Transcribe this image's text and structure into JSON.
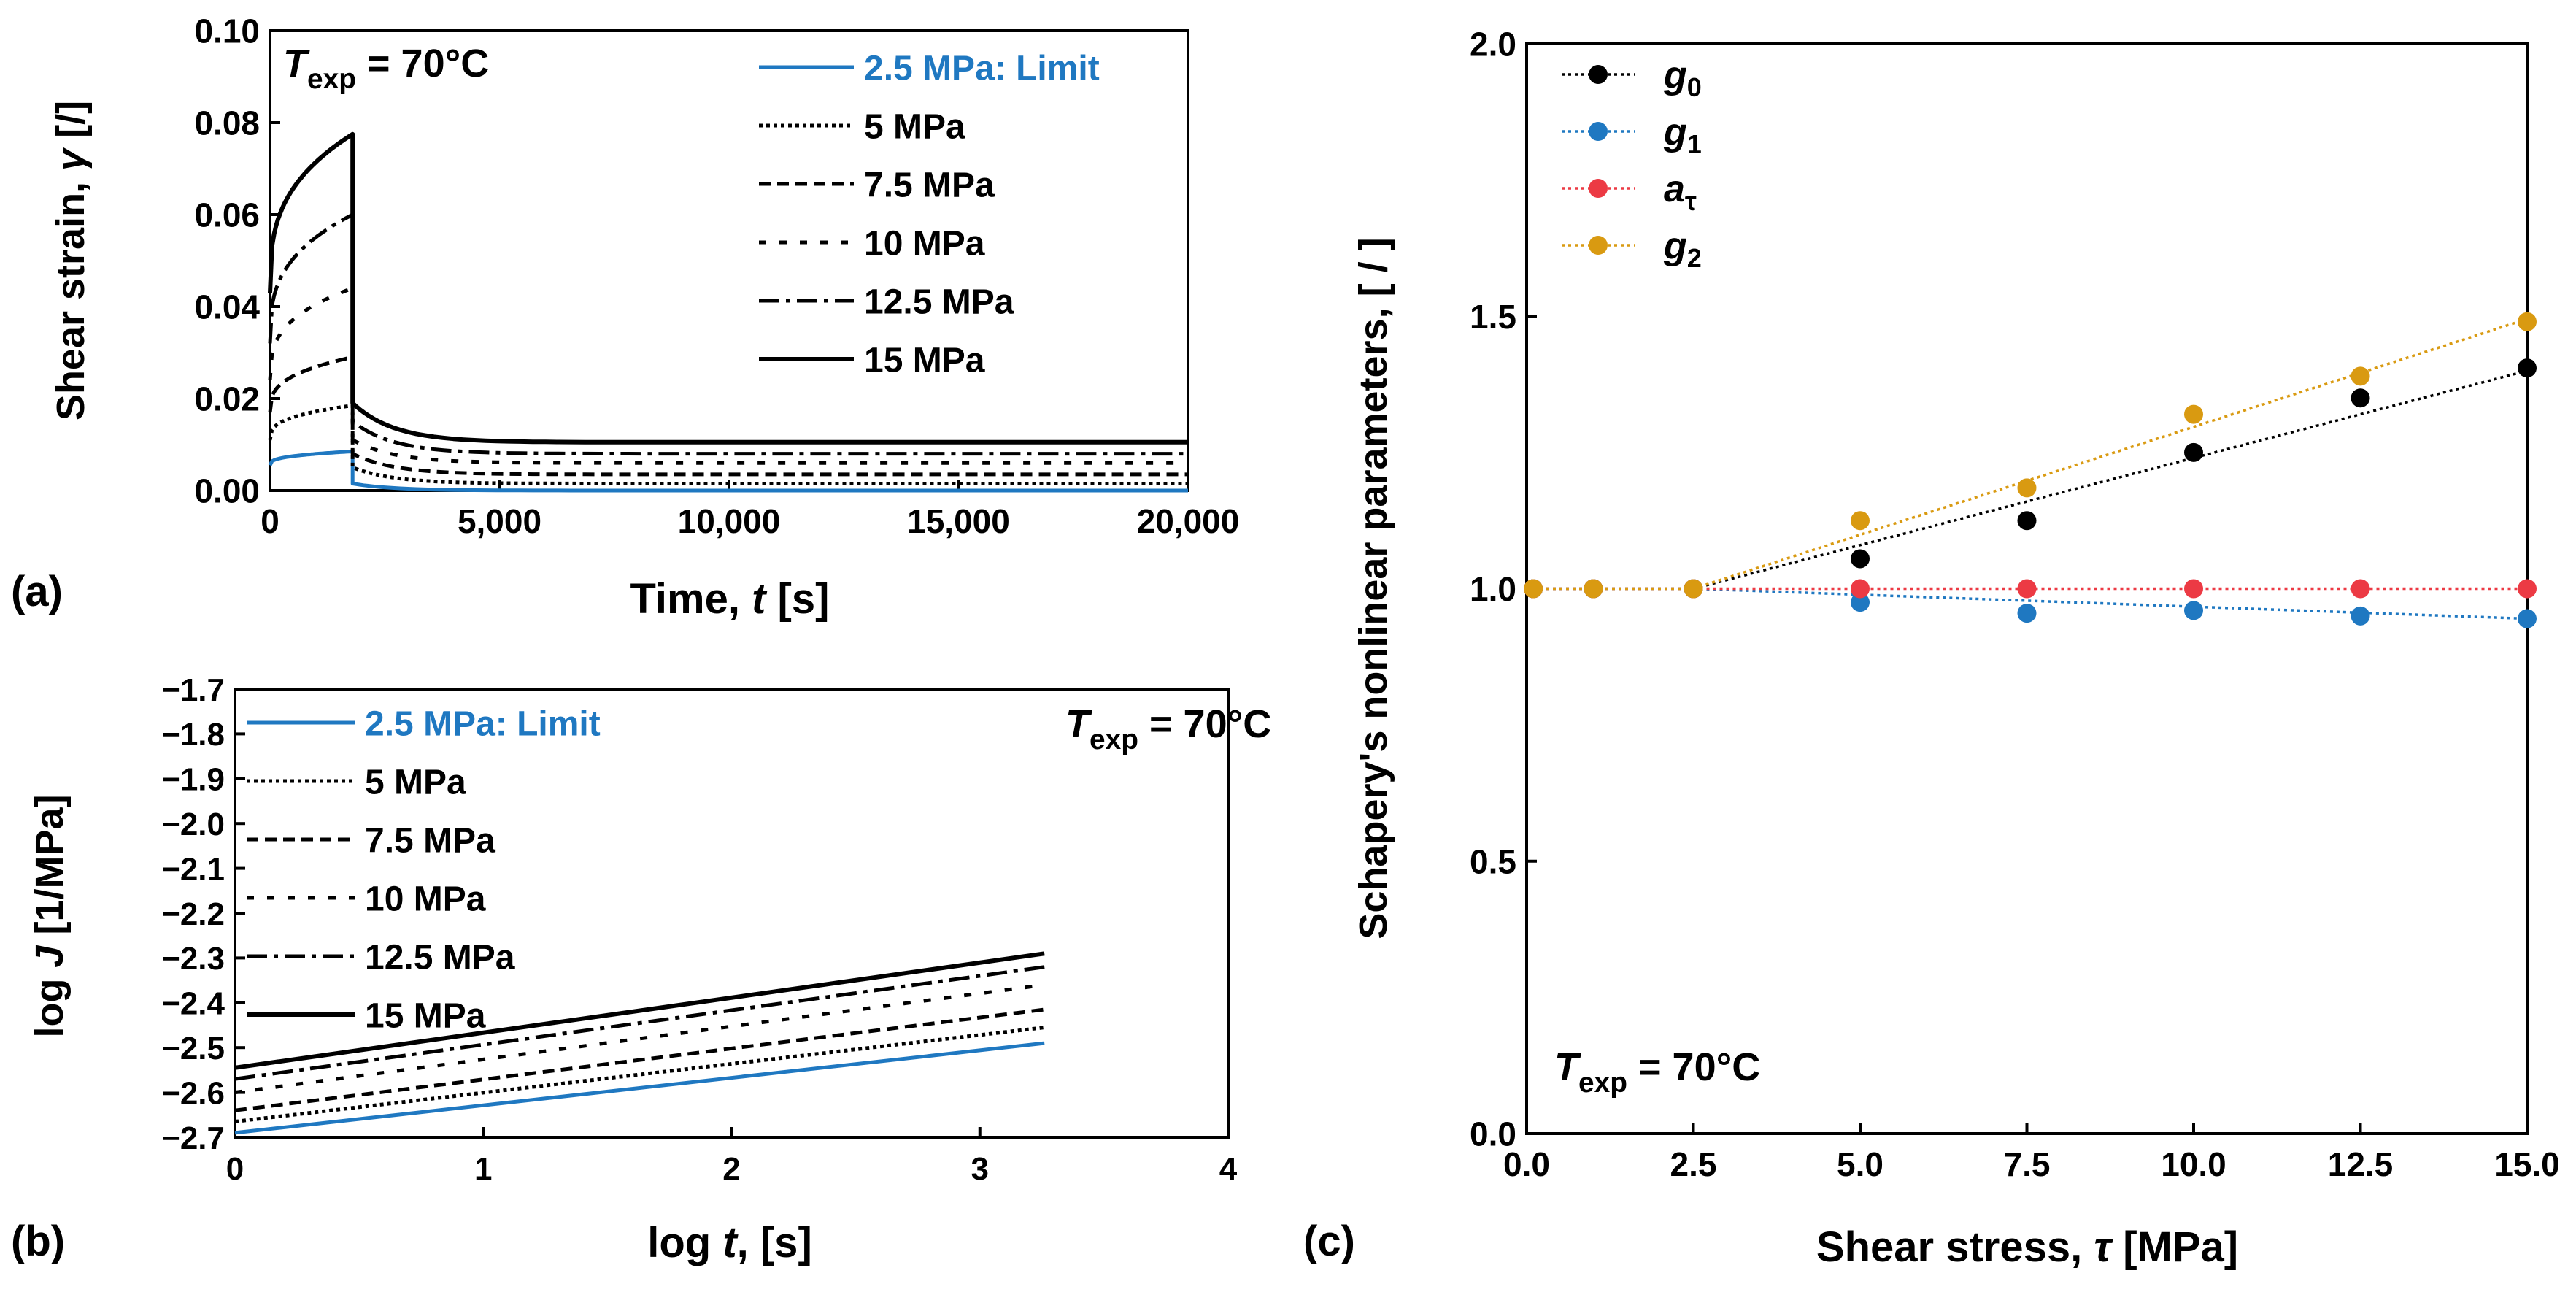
{
  "colors": {
    "black": "#000000",
    "blue": "#1f78c1",
    "red": "#ec3a44",
    "orange": "#d99a11"
  },
  "chart_data": [
    {
      "panel": "(a)",
      "type": "line",
      "annotation": {
        "T": "T",
        "sub": "exp",
        "rest": " = 70°C"
      },
      "xlabel_main": "Time, ",
      "xlabel_var": "t",
      "xlabel_unit": " [s]",
      "ylabel_main": "Shear strain, ",
      "ylabel_var": "γ",
      "ylabel_unit": " [/]",
      "xlim": [
        0,
        20000
      ],
      "ylim": [
        0,
        0.1
      ],
      "xticks": [
        0,
        5000,
        10000,
        15000,
        20000
      ],
      "xtick_labels": [
        "0",
        "5,000",
        "10,000",
        "15,000",
        "20,000"
      ],
      "yticks": [
        0,
        0.02,
        0.04,
        0.06,
        0.08,
        0.1
      ],
      "ytick_labels": [
        "0.00",
        "0.02",
        "0.04",
        "0.06",
        "0.08",
        "0.10"
      ],
      "load_time": 1800,
      "series": [
        {
          "name": "2.5 MPa: Limit",
          "style": "solid-blue",
          "peak": 0.0085,
          "start": 0.0055,
          "residual": 0.0,
          "recovery0": 0.0015
        },
        {
          "name": "5 MPa",
          "style": "dotted",
          "peak": 0.0185,
          "start": 0.011,
          "residual": 0.0015,
          "recovery0": 0.005
        },
        {
          "name": "7.5 MPa",
          "style": "dashed",
          "peak": 0.029,
          "start": 0.017,
          "residual": 0.0035,
          "recovery0": 0.008
        },
        {
          "name": "10 MPa",
          "style": "sparse-dash",
          "peak": 0.044,
          "start": 0.024,
          "residual": 0.006,
          "recovery0": 0.011
        },
        {
          "name": "12.5 MPa",
          "style": "dash-dot",
          "peak": 0.06,
          "start": 0.032,
          "residual": 0.008,
          "recovery0": 0.015
        },
        {
          "name": "15 MPa",
          "style": "solid-black",
          "peak": 0.0775,
          "start": 0.043,
          "residual": 0.0105,
          "recovery0": 0.019
        }
      ]
    },
    {
      "panel": "(b)",
      "type": "line",
      "annotation": {
        "T": "T",
        "sub": "exp",
        "rest": " = 70°C"
      },
      "xlabel_main": "log ",
      "xlabel_var": "t",
      "xlabel_unit": ", [s]",
      "ylabel_main": "log ",
      "ylabel_var": "J",
      "ylabel_unit": " [1/MPa]",
      "xlim": [
        0,
        4
      ],
      "ylim": [
        -2.7,
        -1.7
      ],
      "xticks": [
        0,
        1,
        2,
        3,
        4
      ],
      "xtick_labels": [
        "0",
        "1",
        "2",
        "3",
        "4"
      ],
      "yticks": [
        -2.7,
        -2.6,
        -2.5,
        -2.4,
        -2.3,
        -2.2,
        -2.1,
        -2.0,
        -1.9,
        -1.8,
        -1.7
      ],
      "ytick_labels": [
        "−2.7",
        "−2.6",
        "−2.5",
        "−2.4",
        "−2.3",
        "−2.2",
        "−2.1",
        "−2.0",
        "−1.9",
        "−1.8",
        "−1.7"
      ],
      "series": [
        {
          "name": "2.5 MPa: Limit",
          "style": "solid-blue",
          "x": [
            0,
            3.26
          ],
          "y": [
            -2.69,
            -2.49
          ]
        },
        {
          "name": "5 MPa",
          "style": "dotted",
          "x": [
            0,
            3.26
          ],
          "y": [
            -2.665,
            -2.455
          ]
        },
        {
          "name": "7.5 MPa",
          "style": "dashed",
          "x": [
            0,
            3.26
          ],
          "y": [
            -2.64,
            -2.415
          ]
        },
        {
          "name": "10 MPa",
          "style": "sparse-dash",
          "x": [
            0,
            3.26
          ],
          "y": [
            -2.6,
            -2.36
          ]
        },
        {
          "name": "12.5 MPa",
          "style": "dash-dot",
          "x": [
            0,
            3.26
          ],
          "y": [
            -2.57,
            -2.32
          ]
        },
        {
          "name": "15 MPa",
          "style": "solid-black",
          "x": [
            0,
            3.26
          ],
          "y": [
            -2.545,
            -2.29
          ]
        }
      ]
    },
    {
      "panel": "(c)",
      "type": "scatter",
      "annotation": {
        "T": "T",
        "sub": "exp",
        "rest": " = 70°C"
      },
      "xlabel_main": "Shear stress, ",
      "xlabel_var": "τ",
      "xlabel_unit": " [MPa]",
      "ylabel": "Schapery's nonlinear parameters, [ / ]",
      "xlim": [
        0,
        15
      ],
      "ylim": [
        0,
        2
      ],
      "xticks": [
        0,
        2.5,
        5,
        7.5,
        10,
        12.5,
        15
      ],
      "xtick_labels": [
        "0.0",
        "2.5",
        "5.0",
        "7.5",
        "10.0",
        "12.5",
        "15.0"
      ],
      "yticks": [
        0,
        0.5,
        1.0,
        1.5,
        2.0
      ],
      "ytick_labels": [
        "0.0",
        "0.5",
        "1.0",
        "1.5",
        "2.0"
      ],
      "x": [
        0.1,
        1.0,
        2.5,
        5.0,
        7.5,
        10.0,
        12.5,
        15.0
      ],
      "series": [
        {
          "name": "g",
          "sub": "0",
          "color": "black",
          "values": [
            1.0,
            1.0,
            1.0,
            1.055,
            1.125,
            1.25,
            1.35,
            1.405
          ],
          "fit_end": 1.4
        },
        {
          "name": "g",
          "sub": "1",
          "color": "blue",
          "values": [
            1.0,
            1.0,
            1.0,
            0.975,
            0.955,
            0.96,
            0.95,
            0.945
          ],
          "fit_end": 0.945
        },
        {
          "name": "a",
          "sub": "τ",
          "color": "red",
          "values": [
            1.0,
            1.0,
            1.0,
            1.0,
            1.0,
            1.0,
            1.0,
            1.0
          ],
          "fit_end": 1.0
        },
        {
          "name": "g",
          "sub": "2",
          "color": "orange",
          "values": [
            1.0,
            1.0,
            1.0,
            1.125,
            1.185,
            1.32,
            1.39,
            1.49
          ],
          "fit_end": 1.495
        }
      ]
    }
  ]
}
